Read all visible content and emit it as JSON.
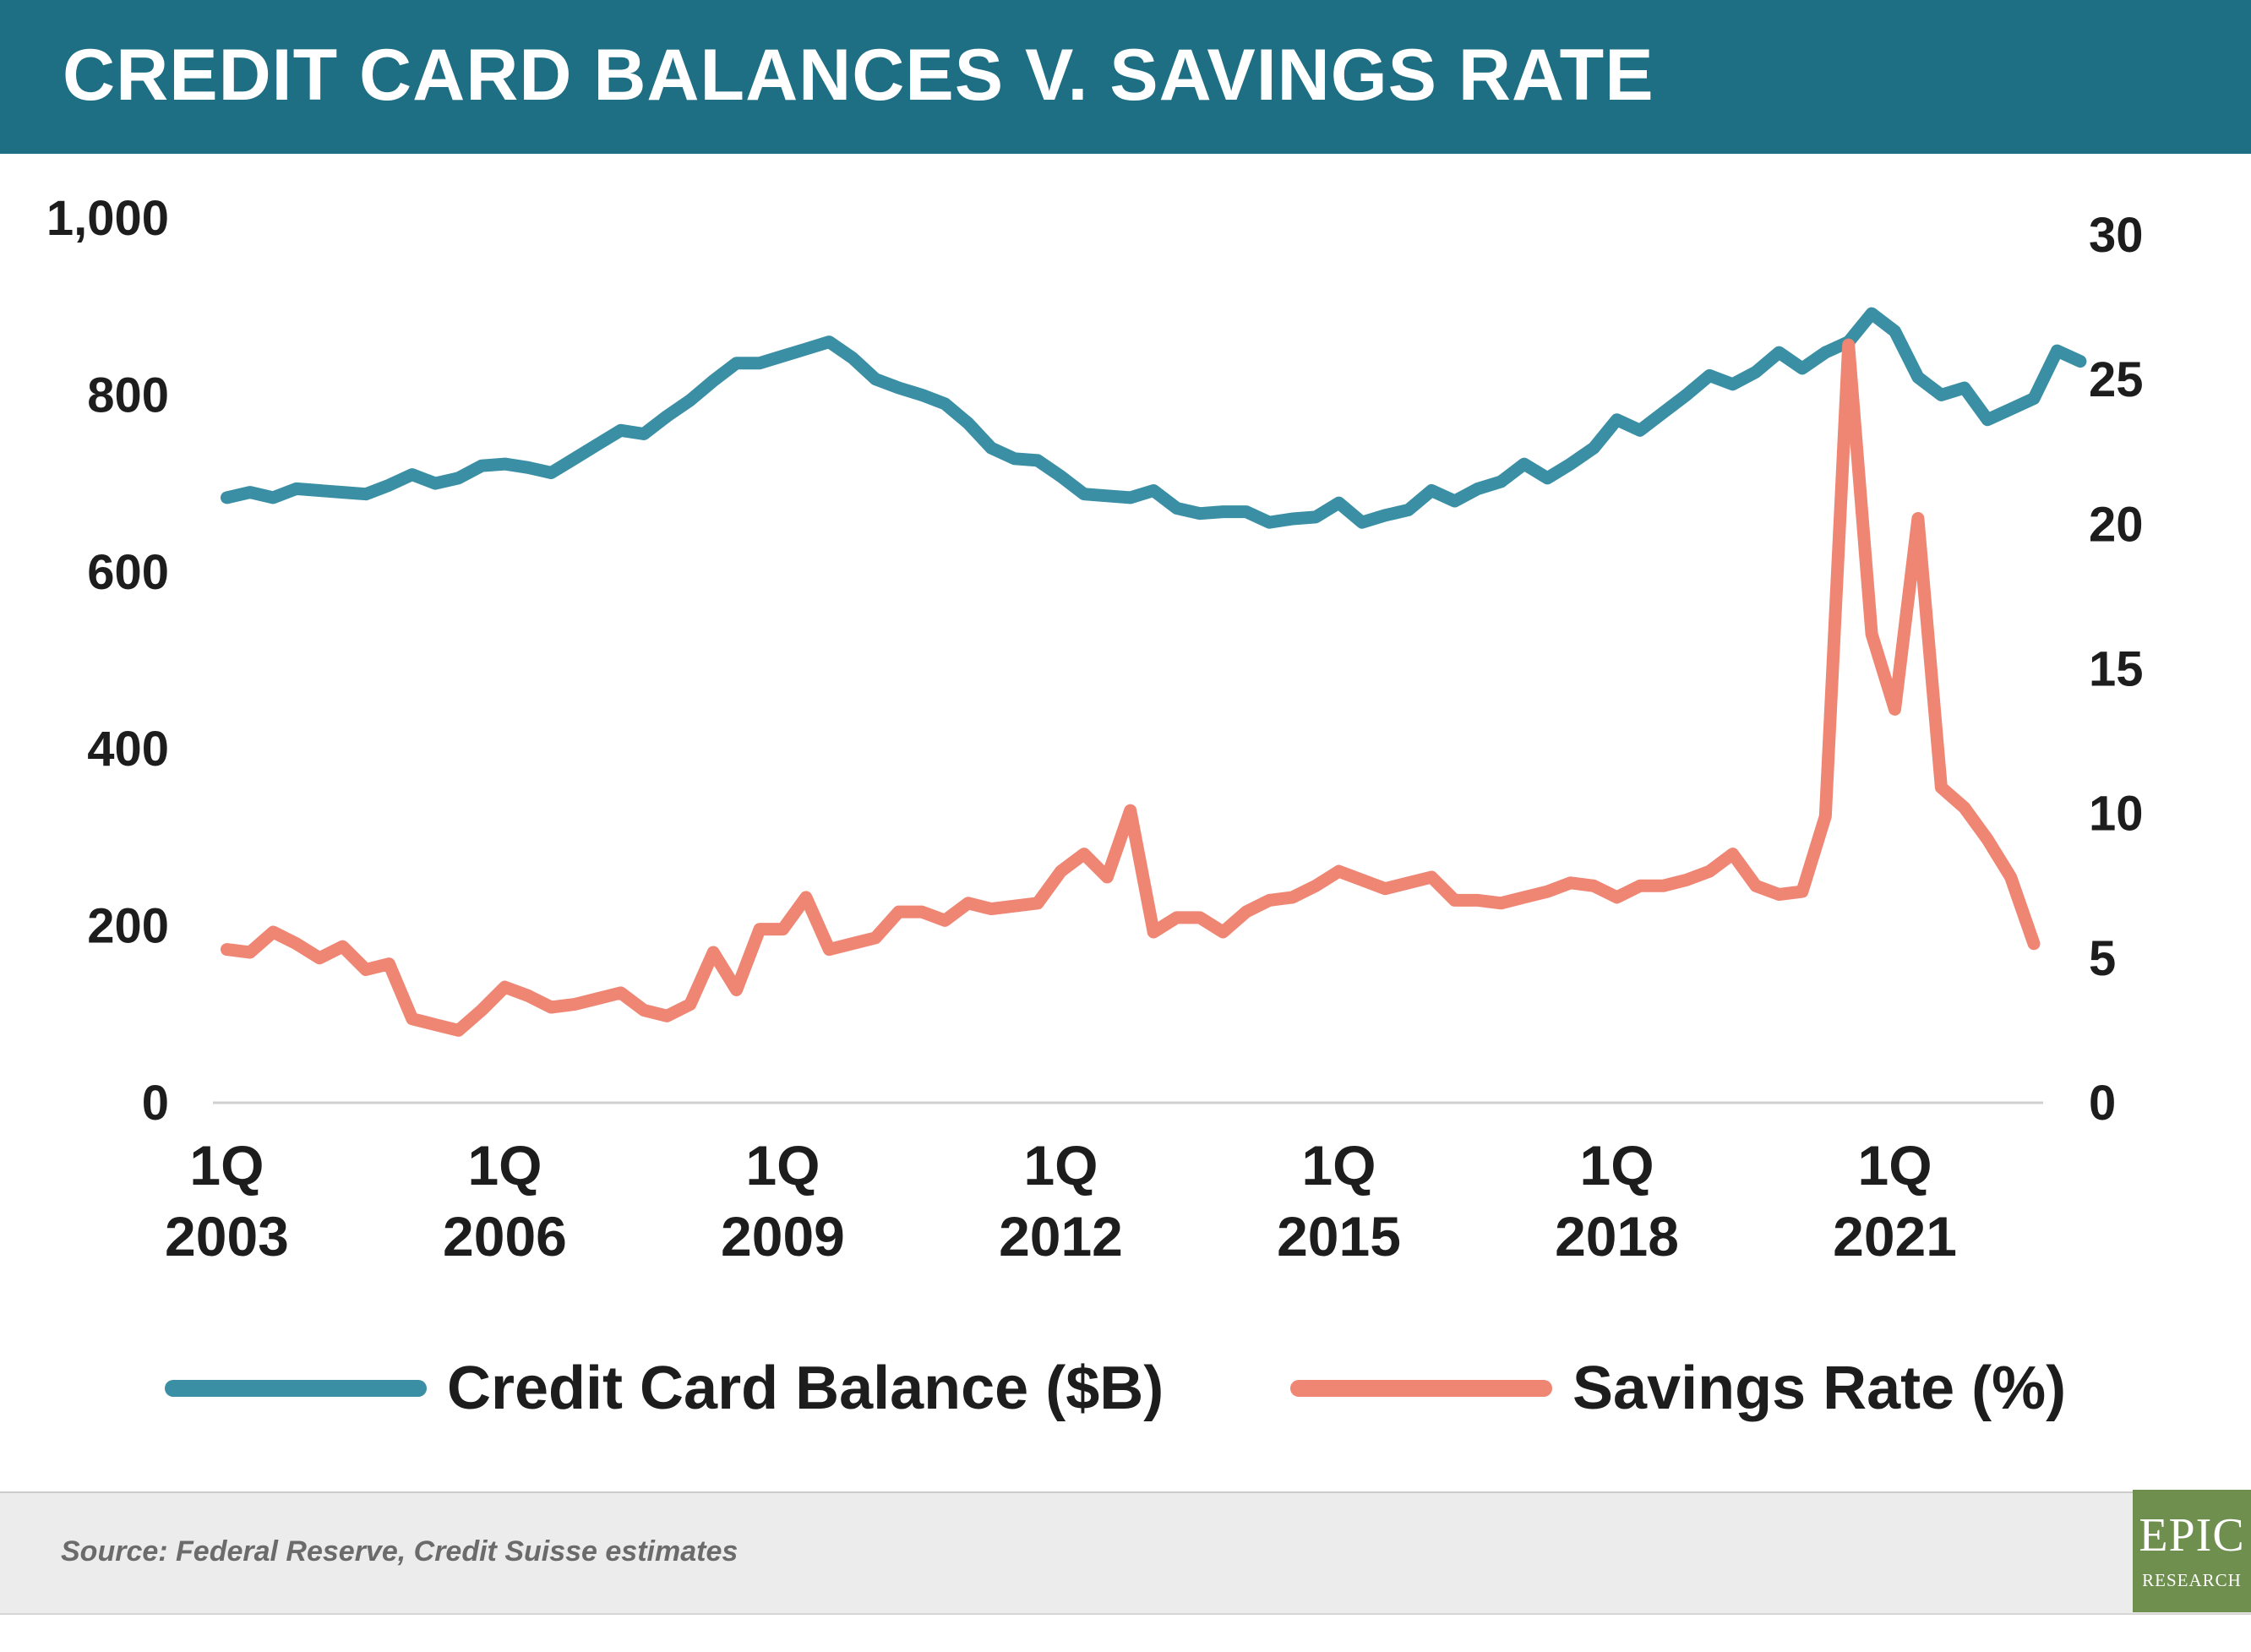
{
  "header": {
    "title": "CREDIT CARD BALANCES V. SAVINGS RATE"
  },
  "colors": {
    "balance": "#3a8fa5",
    "savings": "#ef8573",
    "header_bg": "#1e6e84",
    "text": "#1d1d1d"
  },
  "legend": [
    {
      "label": "Credit Card Balance ($B)"
    },
    {
      "label": "Savings Rate (%)"
    }
  ],
  "footer": {
    "source": "Source: Federal Reserve, Credit Suisse estimates"
  },
  "logo": {
    "line1": "EPIC",
    "line2": "RESEARCH"
  },
  "chart_data": {
    "type": "line",
    "title": "CREDIT CARD BALANCES V. SAVINGS RATE",
    "x_tick_labels": [
      {
        "t": 2003.0,
        "line1": "1Q",
        "line2": "2003"
      },
      {
        "t": 2006.0,
        "line1": "1Q",
        "line2": "2006"
      },
      {
        "t": 2009.0,
        "line1": "1Q",
        "line2": "2009"
      },
      {
        "t": 2012.0,
        "line1": "1Q",
        "line2": "2012"
      },
      {
        "t": 2015.0,
        "line1": "1Q",
        "line2": "2015"
      },
      {
        "t": 2018.0,
        "line1": "1Q",
        "line2": "2018"
      },
      {
        "t": 2021.0,
        "line1": "1Q",
        "line2": "2021"
      }
    ],
    "x_range": [
      2002.85,
      2022.6
    ],
    "y_left": {
      "range": [
        0,
        1000
      ],
      "ticks": [
        "0",
        "200",
        "400",
        "600",
        "800",
        "1,000"
      ],
      "values": [
        0,
        200,
        400,
        600,
        800,
        1000
      ]
    },
    "y_right": {
      "range": [
        0,
        30
      ],
      "ticks": [
        "0",
        "5",
        "10",
        "15",
        "20",
        "25",
        "30"
      ],
      "values": [
        0,
        5,
        10,
        15,
        20,
        25,
        30
      ]
    },
    "grid": false,
    "legend_position": "bottom",
    "series": [
      {
        "name": "Credit Card Balance ($B)",
        "axis": "left",
        "points": [
          [
            2003.0,
            684
          ],
          [
            2003.25,
            690
          ],
          [
            2003.5,
            684
          ],
          [
            2003.75,
            694
          ],
          [
            2004.0,
            692
          ],
          [
            2004.25,
            690
          ],
          [
            2004.5,
            688
          ],
          [
            2004.75,
            698
          ],
          [
            2005.0,
            710
          ],
          [
            2005.25,
            700
          ],
          [
            2005.5,
            706
          ],
          [
            2005.75,
            720
          ],
          [
            2006.0,
            722
          ],
          [
            2006.25,
            718
          ],
          [
            2006.5,
            712
          ],
          [
            2006.75,
            728
          ],
          [
            2007.0,
            744
          ],
          [
            2007.25,
            760
          ],
          [
            2007.5,
            756
          ],
          [
            2007.75,
            776
          ],
          [
            2008.0,
            794
          ],
          [
            2008.25,
            816
          ],
          [
            2008.5,
            836
          ],
          [
            2008.75,
            836
          ],
          [
            2009.0,
            844
          ],
          [
            2009.25,
            852
          ],
          [
            2009.5,
            860
          ],
          [
            2009.75,
            842
          ],
          [
            2010.0,
            818
          ],
          [
            2010.25,
            808
          ],
          [
            2010.5,
            800
          ],
          [
            2010.75,
            790
          ],
          [
            2011.0,
            768
          ],
          [
            2011.25,
            740
          ],
          [
            2011.5,
            728
          ],
          [
            2011.75,
            726
          ],
          [
            2012.0,
            708
          ],
          [
            2012.25,
            688
          ],
          [
            2012.5,
            686
          ],
          [
            2012.75,
            684
          ],
          [
            2013.0,
            692
          ],
          [
            2013.25,
            672
          ],
          [
            2013.5,
            666
          ],
          [
            2013.75,
            668
          ],
          [
            2014.0,
            668
          ],
          [
            2014.25,
            656
          ],
          [
            2014.5,
            660
          ],
          [
            2014.75,
            662
          ],
          [
            2015.0,
            678
          ],
          [
            2015.25,
            656
          ],
          [
            2015.5,
            664
          ],
          [
            2015.75,
            670
          ],
          [
            2016.0,
            692
          ],
          [
            2016.25,
            680
          ],
          [
            2016.5,
            694
          ],
          [
            2016.75,
            702
          ],
          [
            2017.0,
            722
          ],
          [
            2017.25,
            706
          ],
          [
            2017.5,
            722
          ],
          [
            2017.75,
            740
          ],
          [
            2018.0,
            772
          ],
          [
            2018.25,
            760
          ],
          [
            2018.5,
            780
          ],
          [
            2018.75,
            800
          ],
          [
            2019.0,
            822
          ],
          [
            2019.25,
            812
          ],
          [
            2019.5,
            826
          ],
          [
            2019.75,
            848
          ],
          [
            2020.0,
            830
          ],
          [
            2020.25,
            848
          ],
          [
            2020.5,
            860
          ],
          [
            2020.75,
            892
          ],
          [
            2021.0,
            872
          ],
          [
            2021.25,
            820
          ],
          [
            2021.5,
            800
          ],
          [
            2021.75,
            808
          ],
          [
            2022.0,
            772
          ],
          [
            2022.25,
            784
          ],
          [
            2022.5,
            796
          ],
          [
            2022.75,
            850
          ],
          [
            2023.0,
            838
          ]
        ]
      },
      {
        "name": "Savings Rate (%)",
        "axis": "right",
        "points": [
          [
            2003.0,
            5.3
          ],
          [
            2003.25,
            5.2
          ],
          [
            2003.5,
            5.9
          ],
          [
            2003.75,
            5.5
          ],
          [
            2004.0,
            5.0
          ],
          [
            2004.25,
            5.4
          ],
          [
            2004.5,
            4.6
          ],
          [
            2004.75,
            4.8
          ],
          [
            2005.0,
            2.9
          ],
          [
            2005.25,
            2.7
          ],
          [
            2005.5,
            2.5
          ],
          [
            2005.75,
            3.2
          ],
          [
            2006.0,
            4.0
          ],
          [
            2006.25,
            3.7
          ],
          [
            2006.5,
            3.3
          ],
          [
            2006.75,
            3.4
          ],
          [
            2007.0,
            3.6
          ],
          [
            2007.25,
            3.8
          ],
          [
            2007.5,
            3.2
          ],
          [
            2007.75,
            3.0
          ],
          [
            2008.0,
            3.4
          ],
          [
            2008.25,
            5.2
          ],
          [
            2008.5,
            3.9
          ],
          [
            2008.75,
            6.0
          ],
          [
            2009.0,
            6.0
          ],
          [
            2009.25,
            7.1
          ],
          [
            2009.5,
            5.3
          ],
          [
            2009.75,
            5.5
          ],
          [
            2010.0,
            5.7
          ],
          [
            2010.25,
            6.6
          ],
          [
            2010.5,
            6.6
          ],
          [
            2010.75,
            6.3
          ],
          [
            2011.0,
            6.9
          ],
          [
            2011.25,
            6.7
          ],
          [
            2011.5,
            6.8
          ],
          [
            2011.75,
            6.9
          ],
          [
            2012.0,
            8.0
          ],
          [
            2012.25,
            8.6
          ],
          [
            2012.5,
            7.8
          ],
          [
            2012.75,
            10.1
          ],
          [
            2013.0,
            5.9
          ],
          [
            2013.25,
            6.4
          ],
          [
            2013.5,
            6.4
          ],
          [
            2013.75,
            5.9
          ],
          [
            2014.0,
            6.6
          ],
          [
            2014.25,
            7.0
          ],
          [
            2014.5,
            7.1
          ],
          [
            2014.75,
            7.5
          ],
          [
            2015.0,
            8.0
          ],
          [
            2015.25,
            7.7
          ],
          [
            2015.5,
            7.4
          ],
          [
            2015.75,
            7.6
          ],
          [
            2016.0,
            7.8
          ],
          [
            2016.25,
            7.0
          ],
          [
            2016.5,
            7.0
          ],
          [
            2016.75,
            6.9
          ],
          [
            2017.0,
            7.1
          ],
          [
            2017.25,
            7.3
          ],
          [
            2017.5,
            7.6
          ],
          [
            2017.75,
            7.5
          ],
          [
            2018.0,
            7.1
          ],
          [
            2018.25,
            7.5
          ],
          [
            2018.5,
            7.5
          ],
          [
            2018.75,
            7.7
          ],
          [
            2019.0,
            8.0
          ],
          [
            2019.25,
            8.6
          ],
          [
            2019.5,
            7.5
          ],
          [
            2019.75,
            7.2
          ],
          [
            2020.0,
            7.3
          ],
          [
            2020.25,
            9.9
          ],
          [
            2020.5,
            26.2
          ],
          [
            2020.75,
            16.2
          ],
          [
            2021.0,
            13.6
          ],
          [
            2021.25,
            20.2
          ],
          [
            2021.5,
            10.9
          ],
          [
            2021.75,
            10.2
          ],
          [
            2022.0,
            9.1
          ],
          [
            2022.25,
            7.8
          ],
          [
            2022.5,
            5.5
          ]
        ]
      }
    ]
  }
}
